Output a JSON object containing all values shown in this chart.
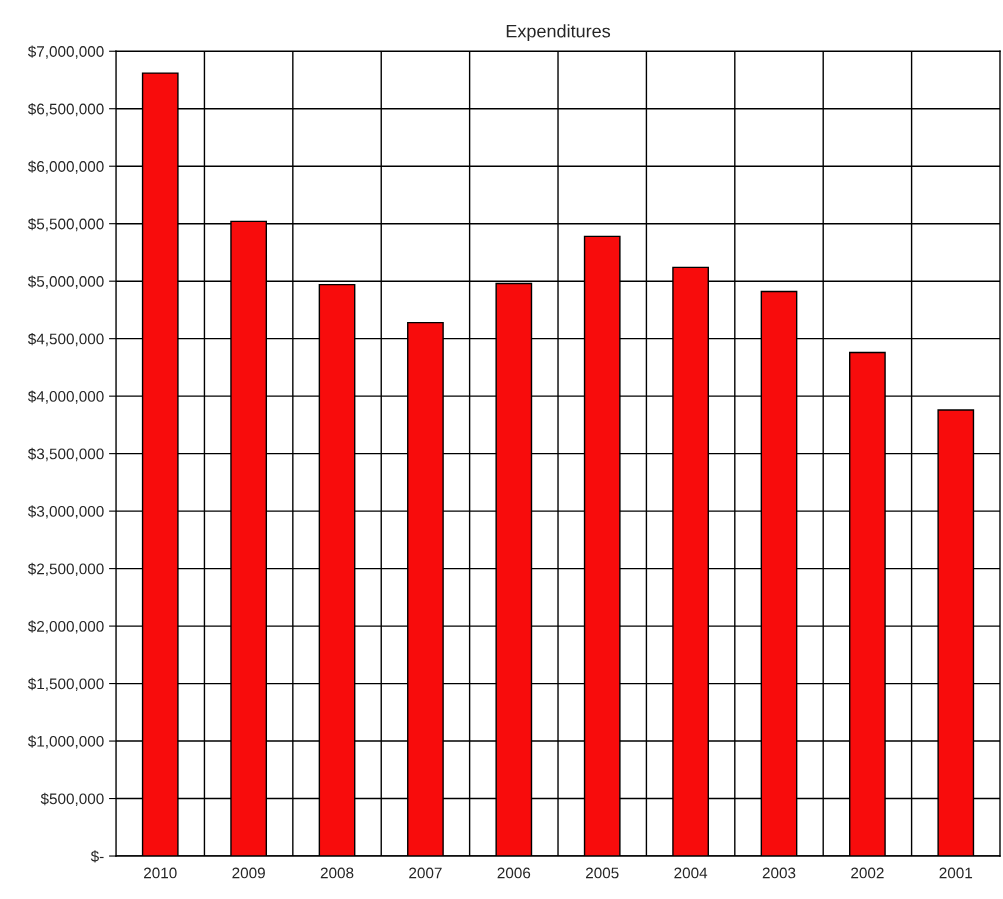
{
  "chart_data": {
    "type": "bar",
    "title": "Expenditures",
    "categories": [
      "2010",
      "2009",
      "2008",
      "2007",
      "2006",
      "2005",
      "2004",
      "2003",
      "2002",
      "2001"
    ],
    "values": [
      6810000,
      5520000,
      4970000,
      4640000,
      4980000,
      5390000,
      5120000,
      4910000,
      4380000,
      3880000
    ],
    "color": "#f80c0c",
    "ylim": [
      0,
      7000000
    ],
    "yticks": [
      {
        "value": 0,
        "label": "$-"
      },
      {
        "value": 500000,
        "label": "$500,000"
      },
      {
        "value": 1000000,
        "label": "$1,000,000"
      },
      {
        "value": 1500000,
        "label": "$1,500,000"
      },
      {
        "value": 2000000,
        "label": "$2,000,000"
      },
      {
        "value": 2500000,
        "label": "$2,500,000"
      },
      {
        "value": 3000000,
        "label": "$3,000,000"
      },
      {
        "value": 3500000,
        "label": "$3,500,000"
      },
      {
        "value": 4000000,
        "label": "$4,000,000"
      },
      {
        "value": 4500000,
        "label": "$4,500,000"
      },
      {
        "value": 5000000,
        "label": "$5,000,000"
      },
      {
        "value": 5500000,
        "label": "$5,500,000"
      },
      {
        "value": 6000000,
        "label": "$6,000,000"
      },
      {
        "value": 6500000,
        "label": "$6,500,000"
      },
      {
        "value": 7000000,
        "label": "$7,000,000"
      }
    ],
    "grid": true
  }
}
